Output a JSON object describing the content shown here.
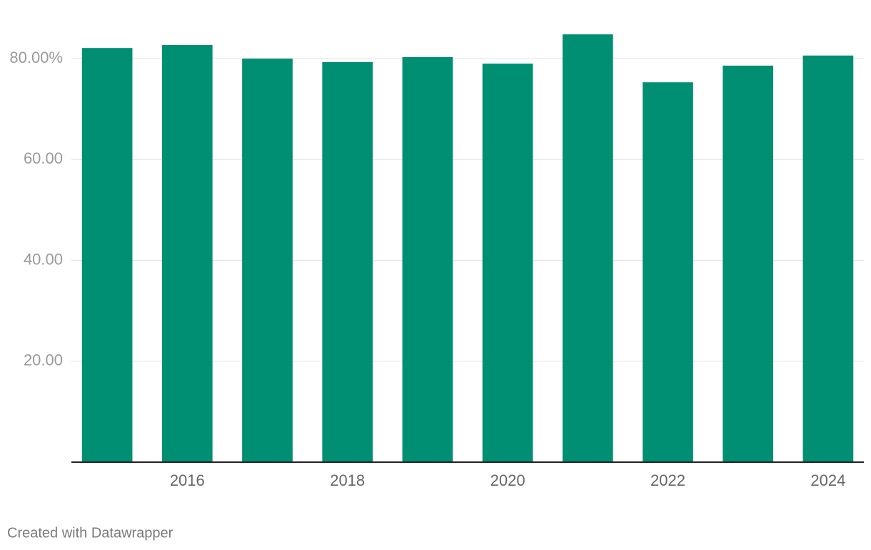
{
  "chart_data": {
    "type": "bar",
    "categories": [
      null,
      "2016",
      null,
      "2018",
      null,
      "2020",
      null,
      "2022",
      null,
      "2024"
    ],
    "values": [
      82.1,
      82.7,
      80.0,
      79.3,
      80.3,
      79.0,
      84.8,
      75.3,
      78.6,
      80.6
    ],
    "color": "#008f72",
    "ylim": [
      0,
      88
    ],
    "yticks": [
      {
        "value": 20,
        "label": "20.00"
      },
      {
        "value": 40,
        "label": "40.00"
      },
      {
        "value": 60,
        "label": "60.00"
      },
      {
        "value": 80,
        "label": "80.00%"
      }
    ],
    "grid": true,
    "credit": "Created with Datawrapper"
  }
}
